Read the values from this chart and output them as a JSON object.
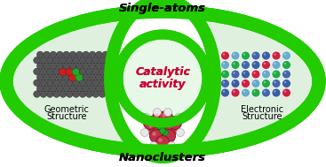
{
  "title_top": "Single-atoms",
  "title_bottom": "Nanoclusters",
  "center_text_line1": "Catalytic",
  "center_text_line2": "activity",
  "left_label_line1": "Geometric",
  "left_label_line2": "Structure",
  "right_label_line1": "Electronic",
  "right_label_line2": "Structure",
  "bg_color": "#ffffff",
  "outer_ellipse_color": "#22cc00",
  "inner_ellipse_color": "#22cc00",
  "center_circle_color": "#22cc00",
  "outer_ellipse_fill": "#dff0df",
  "center_circle_fill": "#e8f8e8",
  "single_atom_color": "#b22222",
  "catalytic_text_color": "#cc0033",
  "title_color": "#000000",
  "fig_width": 3.67,
  "fig_height": 1.89
}
